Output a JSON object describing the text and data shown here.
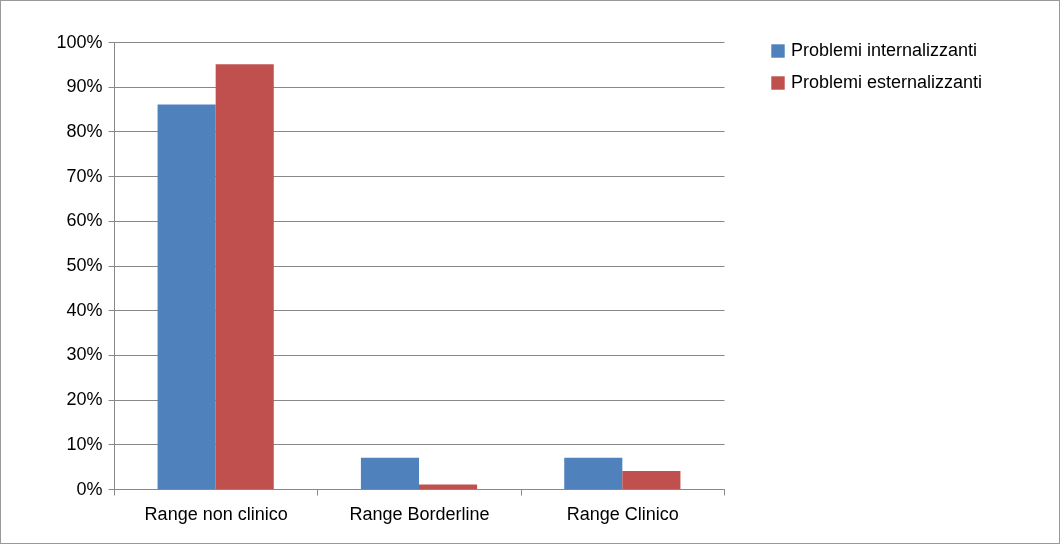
{
  "chart_data": {
    "type": "bar",
    "categories": [
      "Range non clinico",
      "Range Borderline",
      "Range Clinico"
    ],
    "series": [
      {
        "name": "Problemi internalizzanti",
        "color": "#4f81bd",
        "values": [
          86,
          7,
          7
        ]
      },
      {
        "name": "Problemi esternalizzanti",
        "color": "#c0504d",
        "values": [
          95,
          1,
          4
        ]
      }
    ],
    "ylim": [
      0,
      100
    ],
    "yticks": [
      {
        "value": 0,
        "label": "0%"
      },
      {
        "value": 10,
        "label": "10%"
      },
      {
        "value": 20,
        "label": "20%"
      },
      {
        "value": 30,
        "label": "30%"
      },
      {
        "value": 40,
        "label": "40%"
      },
      {
        "value": 50,
        "label": "50%"
      },
      {
        "value": 60,
        "label": "60%"
      },
      {
        "value": 70,
        "label": "70%"
      },
      {
        "value": 80,
        "label": "80%"
      },
      {
        "value": 90,
        "label": "90%"
      },
      {
        "value": 100,
        "label": "100%"
      }
    ],
    "grid": "y",
    "legend": "right"
  }
}
